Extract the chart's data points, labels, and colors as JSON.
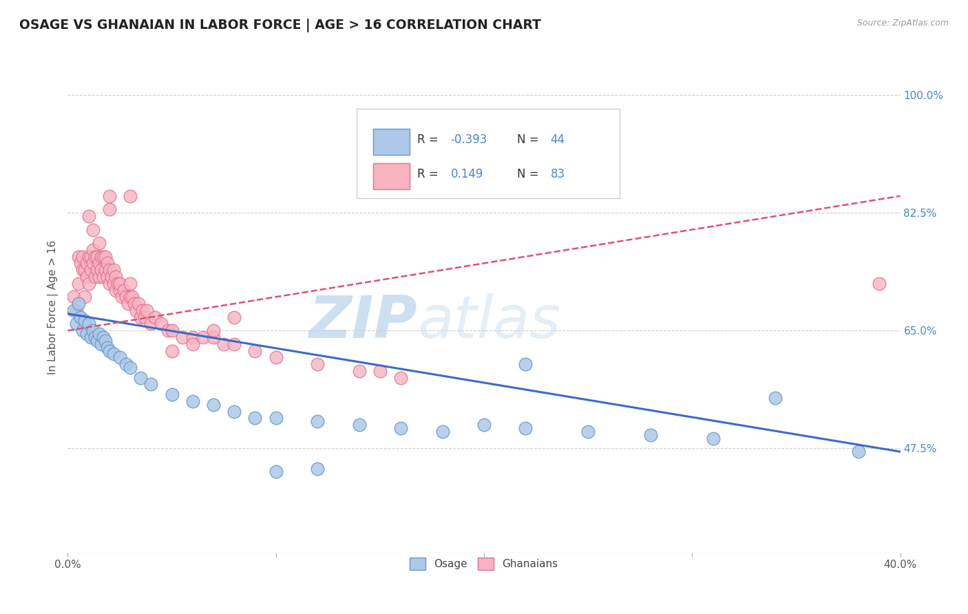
{
  "title": "OSAGE VS GHANAIAN IN LABOR FORCE | AGE > 16 CORRELATION CHART",
  "source_text": "Source: ZipAtlas.com",
  "ylabel": "In Labor Force | Age > 16",
  "xlim": [
    0.0,
    0.4
  ],
  "ylim": [
    0.32,
    1.05
  ],
  "osage_color": "#adc8e8",
  "osage_edge_color": "#6699cc",
  "ghanaian_color": "#f7b3c0",
  "ghanaian_edge_color": "#e07090",
  "trend_osage_color": "#3a6bc8",
  "trend_ghanaian_color": "#e05070",
  "legend_R_osage": "-0.393",
  "legend_N_osage": "44",
  "legend_R_ghanaian": "0.149",
  "legend_N_ghanaian": "83",
  "watermark_zip": "ZIP",
  "watermark_atlas": "atlas",
  "background_color": "#ffffff",
  "grid_color": "#cccccc",
  "title_color": "#222222",
  "label_color": "#4488cc",
  "osage_x": [
    0.003,
    0.004,
    0.005,
    0.006,
    0.007,
    0.008,
    0.009,
    0.01,
    0.011,
    0.012,
    0.013,
    0.014,
    0.015,
    0.016,
    0.017,
    0.018,
    0.019,
    0.02,
    0.022,
    0.025,
    0.028,
    0.03,
    0.035,
    0.04,
    0.05,
    0.06,
    0.07,
    0.08,
    0.09,
    0.1,
    0.12,
    0.14,
    0.16,
    0.18,
    0.2,
    0.22,
    0.25,
    0.28,
    0.31,
    0.34,
    0.1,
    0.12,
    0.38,
    0.22
  ],
  "osage_y": [
    0.68,
    0.66,
    0.69,
    0.67,
    0.65,
    0.665,
    0.645,
    0.66,
    0.64,
    0.65,
    0.64,
    0.635,
    0.645,
    0.63,
    0.64,
    0.635,
    0.625,
    0.62,
    0.615,
    0.61,
    0.6,
    0.595,
    0.58,
    0.57,
    0.555,
    0.545,
    0.54,
    0.53,
    0.52,
    0.52,
    0.515,
    0.51,
    0.505,
    0.5,
    0.51,
    0.505,
    0.5,
    0.495,
    0.49,
    0.55,
    0.44,
    0.445,
    0.47,
    0.6
  ],
  "ghanaian_x": [
    0.003,
    0.004,
    0.005,
    0.005,
    0.006,
    0.007,
    0.007,
    0.008,
    0.008,
    0.009,
    0.009,
    0.01,
    0.01,
    0.011,
    0.011,
    0.012,
    0.012,
    0.013,
    0.013,
    0.014,
    0.014,
    0.015,
    0.015,
    0.015,
    0.016,
    0.016,
    0.017,
    0.017,
    0.018,
    0.018,
    0.019,
    0.019,
    0.02,
    0.02,
    0.021,
    0.022,
    0.022,
    0.023,
    0.023,
    0.024,
    0.025,
    0.025,
    0.026,
    0.027,
    0.028,
    0.029,
    0.03,
    0.03,
    0.031,
    0.032,
    0.033,
    0.034,
    0.035,
    0.036,
    0.037,
    0.038,
    0.04,
    0.042,
    0.045,
    0.048,
    0.05,
    0.055,
    0.06,
    0.065,
    0.07,
    0.075,
    0.08,
    0.09,
    0.1,
    0.12,
    0.14,
    0.15,
    0.16,
    0.05,
    0.06,
    0.07,
    0.08,
    0.03,
    0.02,
    0.02,
    0.01,
    0.012,
    0.39
  ],
  "ghanaian_y": [
    0.7,
    0.68,
    0.72,
    0.76,
    0.75,
    0.74,
    0.76,
    0.7,
    0.74,
    0.73,
    0.75,
    0.72,
    0.76,
    0.74,
    0.76,
    0.75,
    0.77,
    0.73,
    0.76,
    0.74,
    0.76,
    0.73,
    0.75,
    0.78,
    0.74,
    0.76,
    0.73,
    0.76,
    0.74,
    0.76,
    0.73,
    0.75,
    0.72,
    0.74,
    0.73,
    0.72,
    0.74,
    0.71,
    0.73,
    0.72,
    0.71,
    0.72,
    0.7,
    0.71,
    0.7,
    0.69,
    0.7,
    0.72,
    0.7,
    0.69,
    0.68,
    0.69,
    0.67,
    0.68,
    0.67,
    0.68,
    0.66,
    0.67,
    0.66,
    0.65,
    0.65,
    0.64,
    0.64,
    0.64,
    0.64,
    0.63,
    0.63,
    0.62,
    0.61,
    0.6,
    0.59,
    0.59,
    0.58,
    0.62,
    0.63,
    0.65,
    0.67,
    0.85,
    0.85,
    0.83,
    0.82,
    0.8,
    0.72
  ]
}
